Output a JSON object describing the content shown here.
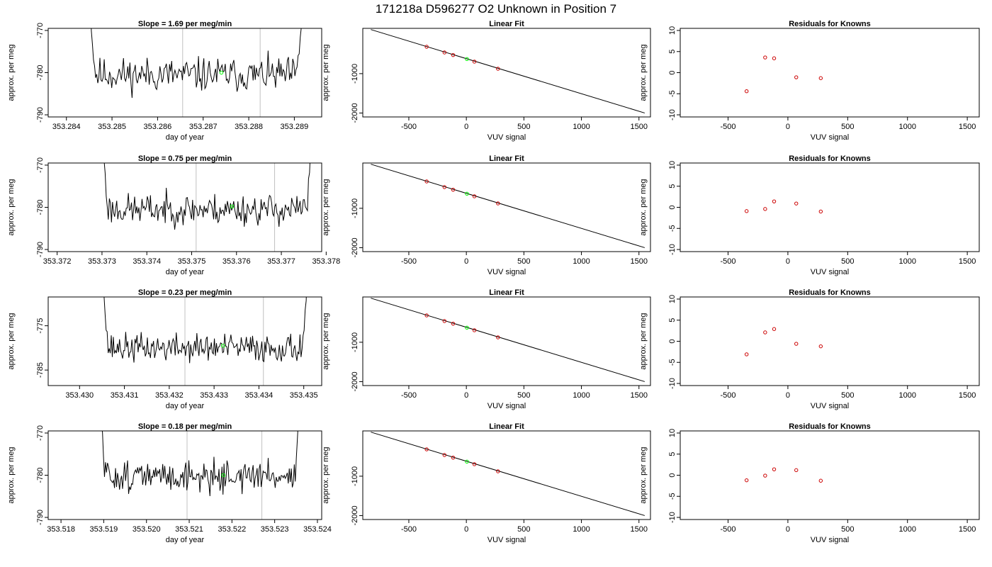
{
  "figure": {
    "title": "171218a      D596277   O2 Unknown in Position  7"
  },
  "chart_data": [
    {
      "row": 1,
      "type": "line",
      "title": "Slope =  1.69  per meg/min",
      "xlabel": "day of year",
      "ylabel": "approx. per meg",
      "xlim": [
        353.2836,
        353.2896
      ],
      "ylim": [
        -790.5,
        -769.5
      ],
      "xticks": [
        353.284,
        353.285,
        353.286,
        353.287,
        353.288,
        353.289
      ],
      "xtick_labels": [
        "353.284",
        "353.285",
        "353.286",
        "353.287",
        "353.288",
        "353.289"
      ],
      "yticks": [
        -790,
        -780,
        -770
      ],
      "ytick_labels": [
        "-790",
        "-780",
        "-770"
      ],
      "x_start": 353.2845,
      "x_end": 353.2892,
      "baseline": -780.5,
      "noise": 2.5,
      "seed": 11,
      "vlines": [
        353.28655,
        353.28825
      ],
      "highlight": {
        "x": 353.2874,
        "y": -780.0,
        "color": "#00ff00"
      },
      "line_color": "#000000",
      "vline_color": "#c0c0c0"
    },
    {
      "row": 1,
      "type": "scatter",
      "title": "Linear Fit",
      "xlabel": "VUV signal",
      "ylabel": "approx. per meg",
      "xlim": [
        -900,
        1600
      ],
      "ylim": [
        -2100,
        150
      ],
      "xticks": [
        -500,
        0,
        500,
        1000,
        1500
      ],
      "xtick_labels": [
        "-500",
        "0",
        "500",
        "1000",
        "1500"
      ],
      "yticks": [
        -2000,
        -1000
      ],
      "ytick_labels": [
        "-2000",
        "-1000"
      ],
      "fit_line": {
        "x": [
          -830,
          1550
        ],
        "y": [
          120,
          -2000
        ]
      },
      "points": [
        {
          "x": -345,
          "y": -318
        },
        {
          "x": -190,
          "y": -462
        },
        {
          "x": -115,
          "y": -528
        },
        {
          "x": 70,
          "y": -695
        },
        {
          "x": 275,
          "y": -876
        }
      ],
      "highlight": {
        "x": 5,
        "y": -630,
        "color": "#00ff00"
      },
      "point_color": "#cc0000",
      "line_color": "#000000"
    },
    {
      "row": 1,
      "type": "scatter",
      "title": "Residuals for Knowns",
      "xlabel": "VUV signal",
      "ylabel": "approx. per meg",
      "xlim": [
        -900,
        1600
      ],
      "ylim": [
        -10.5,
        10.5
      ],
      "xticks": [
        -500,
        0,
        500,
        1000,
        1500
      ],
      "xtick_labels": [
        "-500",
        "0",
        "500",
        "1000",
        "1500"
      ],
      "yticks": [
        -10,
        -5,
        0,
        5,
        10
      ],
      "ytick_labels": [
        "-10",
        "-5",
        "0",
        "5",
        "10"
      ],
      "points": [
        {
          "x": -345,
          "y": -4.4
        },
        {
          "x": -190,
          "y": 3.6
        },
        {
          "x": -115,
          "y": 3.4
        },
        {
          "x": 70,
          "y": -1.1
        },
        {
          "x": 275,
          "y": -1.3
        }
      ],
      "point_color": "#cc0000"
    },
    {
      "row": 2,
      "type": "line",
      "title": "Slope =  0.75  per meg/min",
      "xlabel": "day of year",
      "ylabel": "approx. per meg",
      "xlim": [
        353.3718,
        353.3779
      ],
      "ylim": [
        -790.5,
        -769.5
      ],
      "xticks": [
        353.372,
        353.373,
        353.374,
        353.375,
        353.376,
        353.377,
        353.378
      ],
      "xtick_labels": [
        "353.372",
        "353.373",
        "353.374",
        "353.375",
        "353.376",
        "353.377",
        "353.378"
      ],
      "yticks": [
        -790,
        -780,
        -770
      ],
      "ytick_labels": [
        "-790",
        "-780",
        "-770"
      ],
      "x_start": 353.373,
      "x_end": 353.3777,
      "baseline": -780.5,
      "noise": 2.3,
      "seed": 23,
      "vlines": [
        353.3751,
        353.37685
      ],
      "highlight": {
        "x": 353.3759,
        "y": -779.8,
        "color": "#00ff00"
      },
      "line_color": "#000000",
      "vline_color": "#c0c0c0"
    },
    {
      "row": 2,
      "type": "scatter",
      "title": "Linear Fit",
      "xlabel": "VUV signal",
      "ylabel": "approx. per meg",
      "xlim": [
        -900,
        1600
      ],
      "ylim": [
        -2100,
        150
      ],
      "xticks": [
        -500,
        0,
        500,
        1000,
        1500
      ],
      "xtick_labels": [
        "-500",
        "0",
        "500",
        "1000",
        "1500"
      ],
      "yticks": [
        -2000,
        -1000
      ],
      "ytick_labels": [
        "-2000",
        "-1000"
      ],
      "fit_line": {
        "x": [
          -830,
          1550
        ],
        "y": [
          120,
          -2000
        ]
      },
      "points": [
        {
          "x": -345,
          "y": -318
        },
        {
          "x": -190,
          "y": -462
        },
        {
          "x": -115,
          "y": -528
        },
        {
          "x": 70,
          "y": -695
        },
        {
          "x": 275,
          "y": -876
        }
      ],
      "highlight": {
        "x": 5,
        "y": -630,
        "color": "#00ff00"
      },
      "point_color": "#cc0000",
      "line_color": "#000000"
    },
    {
      "row": 2,
      "type": "scatter",
      "title": "Residuals for Knowns",
      "xlabel": "VUV signal",
      "ylabel": "approx. per meg",
      "xlim": [
        -900,
        1600
      ],
      "ylim": [
        -10.5,
        10.5
      ],
      "xticks": [
        -500,
        0,
        500,
        1000,
        1500
      ],
      "xtick_labels": [
        "-500",
        "0",
        "500",
        "1000",
        "1500"
      ],
      "yticks": [
        -10,
        -5,
        0,
        5,
        10
      ],
      "ytick_labels": [
        "-10",
        "-5",
        "0",
        "5",
        "10"
      ],
      "points": [
        {
          "x": -345,
          "y": -0.9
        },
        {
          "x": -190,
          "y": -0.4
        },
        {
          "x": -115,
          "y": 1.4
        },
        {
          "x": 70,
          "y": 0.9
        },
        {
          "x": 275,
          "y": -1.0
        }
      ],
      "point_color": "#cc0000"
    },
    {
      "row": 3,
      "type": "line",
      "title": "Slope =  0.23  per meg/min",
      "xlabel": "day of year",
      "ylabel": "approx. per meg",
      "xlim": [
        353.4293,
        353.4354
      ],
      "ylim": [
        -788.5,
        -768.5
      ],
      "xticks": [
        353.43,
        353.431,
        353.432,
        353.433,
        353.434,
        353.435
      ],
      "xtick_labels": [
        "353.430",
        "353.431",
        "353.432",
        "353.433",
        "353.434",
        "353.435"
      ],
      "yticks": [
        -785,
        -775
      ],
      "ytick_labels": [
        "-785",
        "-775"
      ],
      "x_start": 353.4305,
      "x_end": 353.4351,
      "baseline": -780.0,
      "noise": 2.0,
      "seed": 37,
      "vlines": [
        353.43235,
        353.4341
      ],
      "highlight": {
        "x": 353.4332,
        "y": -779.5,
        "color": "#00ff00"
      },
      "line_color": "#000000",
      "vline_color": "#c0c0c0"
    },
    {
      "row": 3,
      "type": "scatter",
      "title": "Linear Fit",
      "xlabel": "VUV signal",
      "ylabel": "approx. per meg",
      "xlim": [
        -900,
        1600
      ],
      "ylim": [
        -2100,
        150
      ],
      "xticks": [
        -500,
        0,
        500,
        1000,
        1500
      ],
      "xtick_labels": [
        "-500",
        "0",
        "500",
        "1000",
        "1500"
      ],
      "yticks": [
        -2000,
        -1000
      ],
      "ytick_labels": [
        "-2000",
        "-1000"
      ],
      "fit_line": {
        "x": [
          -830,
          1550
        ],
        "y": [
          120,
          -2000
        ]
      },
      "points": [
        {
          "x": -345,
          "y": -318
        },
        {
          "x": -190,
          "y": -462
        },
        {
          "x": -115,
          "y": -528
        },
        {
          "x": 70,
          "y": -695
        },
        {
          "x": 275,
          "y": -876
        }
      ],
      "highlight": {
        "x": 5,
        "y": -630,
        "color": "#00ff00"
      },
      "point_color": "#cc0000",
      "line_color": "#000000"
    },
    {
      "row": 3,
      "type": "scatter",
      "title": "Residuals for Knowns",
      "xlabel": "VUV signal",
      "ylabel": "approx. per meg",
      "xlim": [
        -900,
        1600
      ],
      "ylim": [
        -10.5,
        10.5
      ],
      "xticks": [
        -500,
        0,
        500,
        1000,
        1500
      ],
      "xtick_labels": [
        "-500",
        "0",
        "500",
        "1000",
        "1500"
      ],
      "yticks": [
        -10,
        -5,
        0,
        5,
        10
      ],
      "ytick_labels": [
        "-10",
        "-5",
        "0",
        "5",
        "10"
      ],
      "points": [
        {
          "x": -345,
          "y": -3.1
        },
        {
          "x": -190,
          "y": 2.1
        },
        {
          "x": -115,
          "y": 2.9
        },
        {
          "x": 70,
          "y": -0.6
        },
        {
          "x": 275,
          "y": -1.2
        }
      ],
      "point_color": "#cc0000"
    },
    {
      "row": 4,
      "type": "line",
      "title": "Slope =  0.18  per meg/min",
      "xlabel": "day of year",
      "ylabel": "approx. per meg",
      "xlim": [
        353.5177,
        353.5241
      ],
      "ylim": [
        -790.5,
        -769.5
      ],
      "xticks": [
        353.518,
        353.519,
        353.52,
        353.521,
        353.522,
        353.523,
        353.524
      ],
      "xtick_labels": [
        "353.518",
        "353.519",
        "353.520",
        "353.521",
        "353.522",
        "353.523",
        "353.524"
      ],
      "yticks": [
        -790,
        -780,
        -770
      ],
      "ytick_labels": [
        "-790",
        "-780",
        "-770"
      ],
      "x_start": 353.5189,
      "x_end": 353.5236,
      "baseline": -780.2,
      "noise": 2.3,
      "seed": 51,
      "vlines": [
        353.52095,
        353.5227
      ],
      "highlight": {
        "x": 353.5218,
        "y": -780.0,
        "color": "#00ff00"
      },
      "line_color": "#000000",
      "vline_color": "#c0c0c0"
    },
    {
      "row": 4,
      "type": "scatter",
      "title": "Linear Fit",
      "xlabel": "VUV signal",
      "ylabel": "approx. per meg",
      "xlim": [
        -900,
        1600
      ],
      "ylim": [
        -2100,
        150
      ],
      "xticks": [
        -500,
        0,
        500,
        1000,
        1500
      ],
      "xtick_labels": [
        "-500",
        "0",
        "500",
        "1000",
        "1500"
      ],
      "yticks": [
        -2000,
        -1000
      ],
      "ytick_labels": [
        "-2000",
        "-1000"
      ],
      "fit_line": {
        "x": [
          -830,
          1550
        ],
        "y": [
          120,
          -2000
        ]
      },
      "points": [
        {
          "x": -345,
          "y": -318
        },
        {
          "x": -190,
          "y": -462
        },
        {
          "x": -115,
          "y": -528
        },
        {
          "x": 70,
          "y": -695
        },
        {
          "x": 275,
          "y": -876
        }
      ],
      "highlight": {
        "x": 5,
        "y": -630,
        "color": "#00ff00"
      },
      "point_color": "#cc0000",
      "line_color": "#000000"
    },
    {
      "row": 4,
      "type": "scatter",
      "title": "Residuals for Knowns",
      "xlabel": "VUV signal",
      "ylabel": "approx. per meg",
      "xlim": [
        -900,
        1600
      ],
      "ylim": [
        -10.5,
        10.5
      ],
      "xticks": [
        -500,
        0,
        500,
        1000,
        1500
      ],
      "xtick_labels": [
        "-500",
        "0",
        "500",
        "1000",
        "1500"
      ],
      "yticks": [
        -10,
        -5,
        0,
        5,
        10
      ],
      "ytick_labels": [
        "-10",
        "-5",
        "0",
        "5",
        "10"
      ],
      "points": [
        {
          "x": -345,
          "y": -1.2
        },
        {
          "x": -190,
          "y": -0.1
        },
        {
          "x": -115,
          "y": 1.4
        },
        {
          "x": 70,
          "y": 1.2
        },
        {
          "x": 275,
          "y": -1.3
        }
      ],
      "point_color": "#cc0000"
    }
  ]
}
